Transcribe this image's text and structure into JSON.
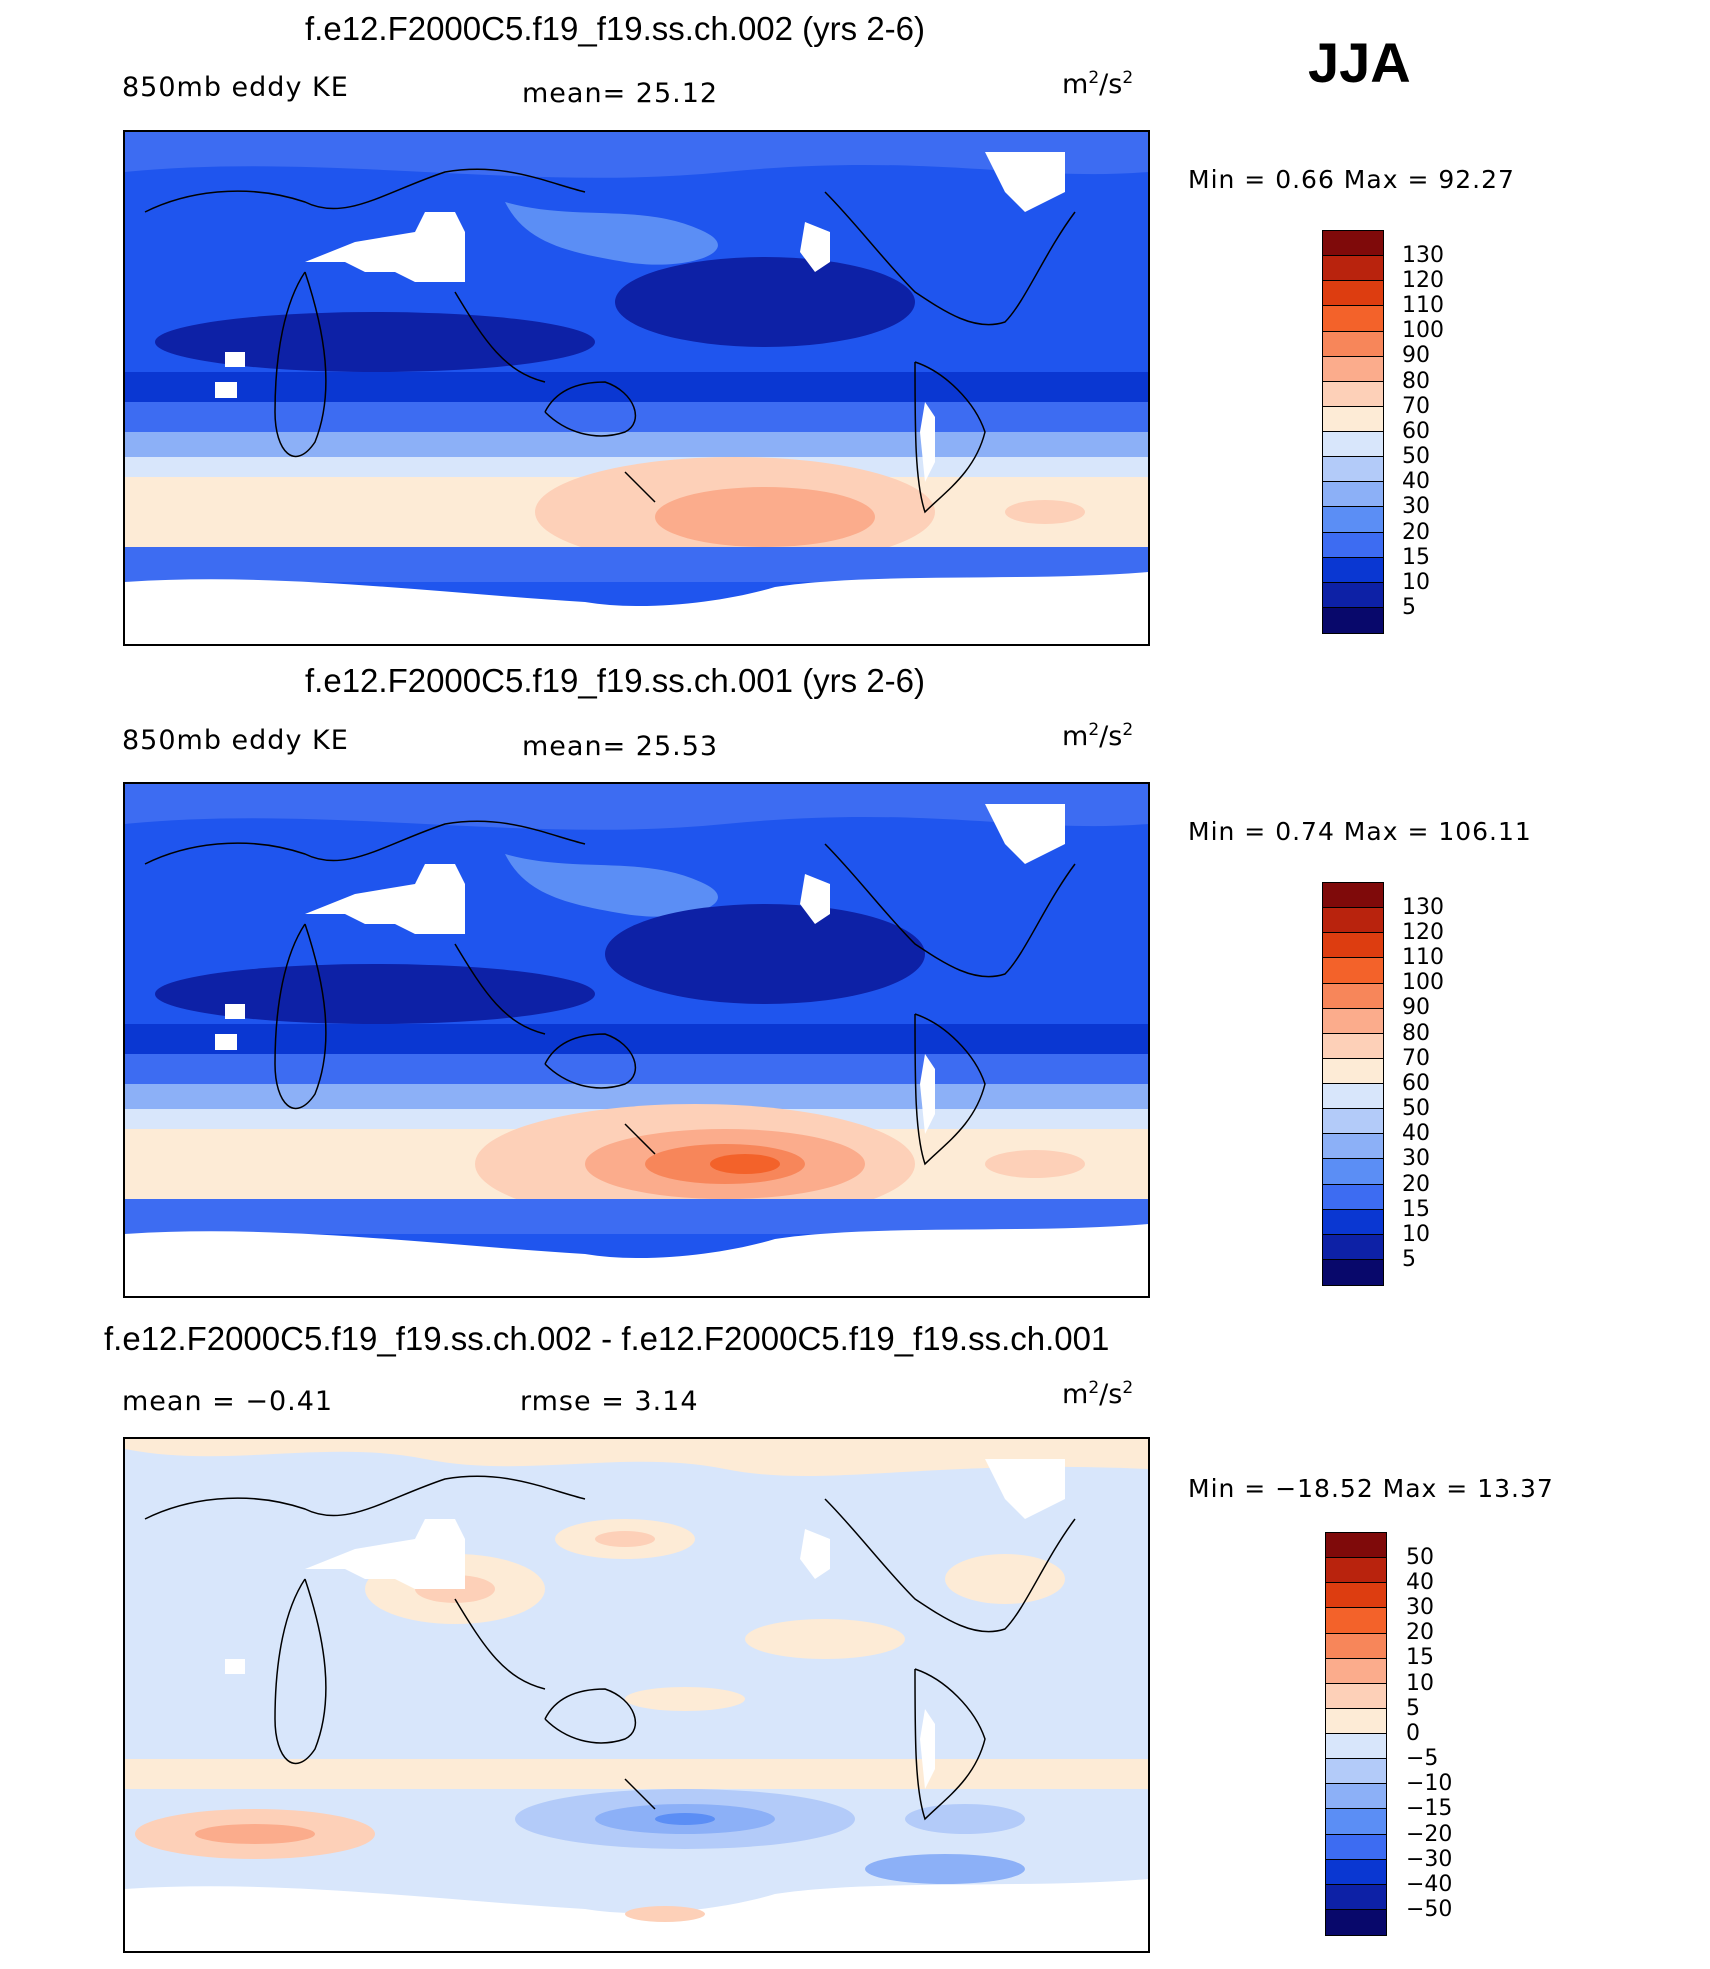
{
  "season": "JJA",
  "colors": {
    "abs_scale": [
      "#08086b",
      "#0d21a6",
      "#0a37d2",
      "#1f55ee",
      "#3d6cf2",
      "#5b8ef5",
      "#8cb0f7",
      "#b3cbf9",
      "#d8e6fb",
      "#fdebd6",
      "#fdd0b8",
      "#fbac8c",
      "#f7865a",
      "#f3622a",
      "#dd3d10",
      "#b9230d",
      "#7f0a0a"
    ],
    "diff_scale": [
      "#08086b",
      "#0d21a6",
      "#0a37d2",
      "#1f55ee",
      "#3d6cf2",
      "#5b8ef5",
      "#8cb0f7",
      "#b3cbf9",
      "#d8e6fb",
      "#fdebd6",
      "#fdd0b8",
      "#fbac8c",
      "#f7865a",
      "#f3622a",
      "#dd3d10",
      "#b9230d",
      "#7f0a0a"
    ]
  },
  "panels": [
    {
      "title": "f.e12.F2000C5.f19_f19.ss.ch.002 (yrs 2-6)",
      "left_label": "850mb eddy KE",
      "center_label": "mean=   25.12",
      "units_base": "m",
      "units_exp1": "2",
      "units_mid": "/s",
      "units_exp2": "2",
      "minmax": "Min  =     0.66  Max  =    92.27",
      "ticks": [
        "130",
        "120",
        "110",
        "100",
        "90",
        "80",
        "70",
        "60",
        "50",
        "40",
        "30",
        "20",
        "15",
        "10",
        "5"
      ]
    },
    {
      "title": "f.e12.F2000C5.f19_f19.ss.ch.001 (yrs 2-6)",
      "left_label": "850mb eddy KE",
      "center_label": "mean=   25.53",
      "units_base": "m",
      "units_exp1": "2",
      "units_mid": "/s",
      "units_exp2": "2",
      "minmax": "Min  =     0.74  Max  =  106.11",
      "ticks": [
        "130",
        "120",
        "110",
        "100",
        "90",
        "80",
        "70",
        "60",
        "50",
        "40",
        "30",
        "20",
        "15",
        "10",
        "5"
      ]
    },
    {
      "title": "f.e12.F2000C5.f19_f19.ss.ch.002 - f.e12.F2000C5.f19_f19.ss.ch.001",
      "left_label": "mean  =   −0.41",
      "center_label": "rmse  =     3.14",
      "units_base": "m",
      "units_exp1": "2",
      "units_mid": "/s",
      "units_exp2": "2",
      "minmax": "Min  =  −18.52  Max  =    13.37",
      "ticks": [
        "50",
        "40",
        "30",
        "20",
        "15",
        "10",
        "5",
        "0",
        "−5",
        "−10",
        "−15",
        "−20",
        "−30",
        "−40",
        "−50"
      ]
    }
  ]
}
